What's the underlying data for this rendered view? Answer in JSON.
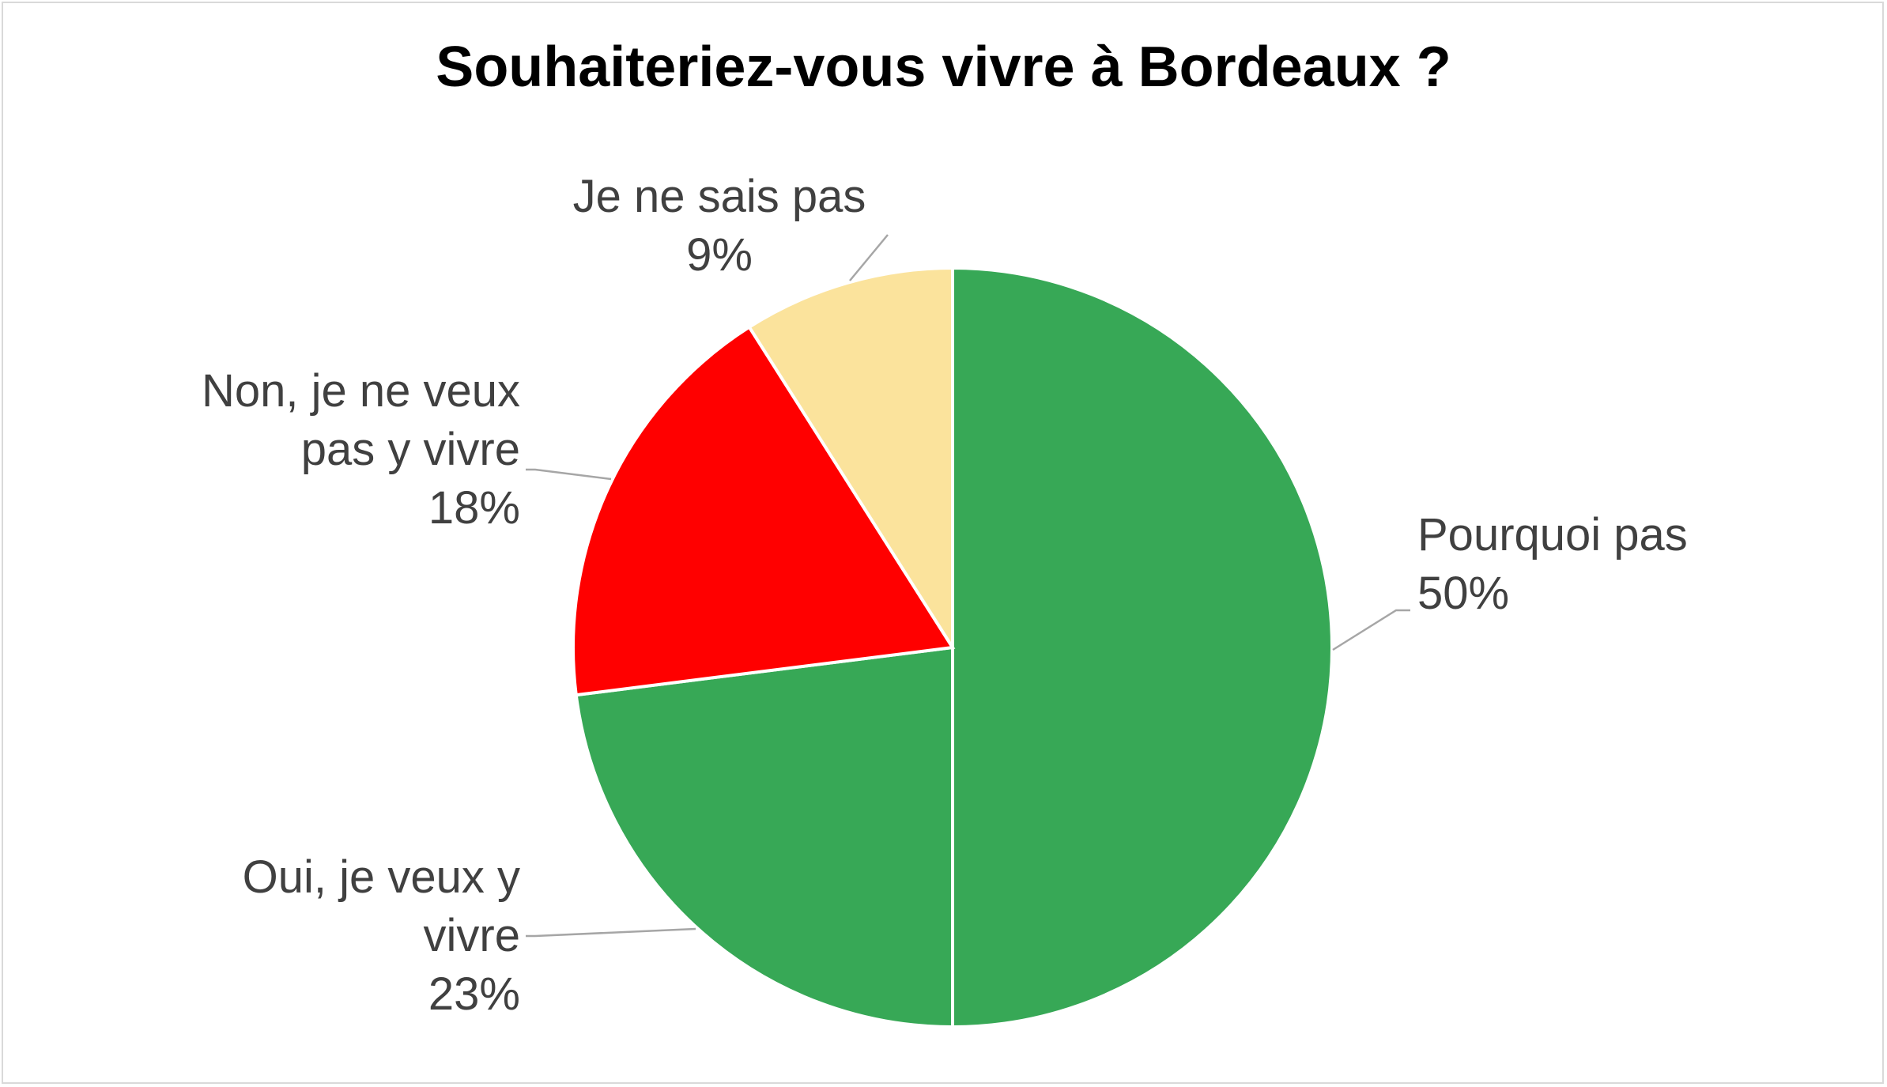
{
  "chart_data": {
    "type": "pie",
    "title": "Souhaiteriez-vous vivre à Bordeaux ?",
    "categories": [
      "Pourquoi pas",
      "Oui, je veux y vivre",
      "Non, je ne veux pas y vivre",
      "Je ne sais pas"
    ],
    "values": [
      50,
      23,
      18,
      9
    ],
    "value_labels": [
      "50%",
      "23%",
      "18%",
      "9%"
    ],
    "colors": [
      "#37a856",
      "#37a856",
      "#ff0000",
      "#fbe39c"
    ]
  }
}
